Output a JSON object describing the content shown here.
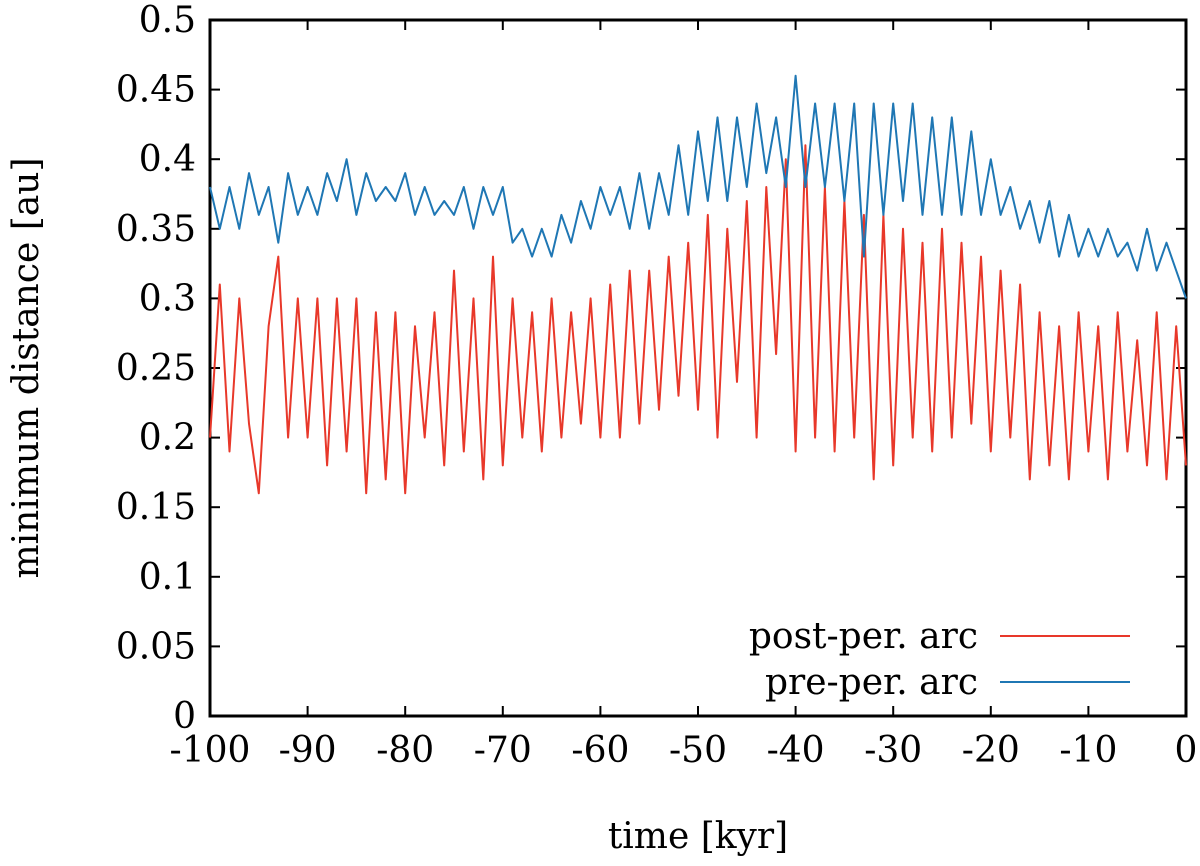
{
  "chart_data": {
    "type": "line",
    "title": "",
    "xlabel": "time [kyr]",
    "ylabel": "minimum distance [au]",
    "xlim": [
      -100,
      0
    ],
    "ylim": [
      0,
      0.5
    ],
    "xticks": [
      -100,
      -90,
      -80,
      -70,
      -60,
      -50,
      -40,
      -30,
      -20,
      -10,
      0
    ],
    "xtick_labels": [
      "-100",
      "-90",
      "-80",
      "-70",
      "-60",
      "-50",
      "-40",
      "-30",
      "-20",
      "-10",
      "0"
    ],
    "yticks": [
      0,
      0.05,
      0.1,
      0.15,
      0.2,
      0.25,
      0.3,
      0.35,
      0.4,
      0.45,
      0.5
    ],
    "ytick_labels": [
      "0",
      "0.05",
      "0.1",
      "0.15",
      "0.2",
      "0.25",
      "0.3",
      "0.35",
      "0.4",
      "0.45",
      "0.5"
    ],
    "grid": false,
    "legend_position": "bottom-right",
    "series": [
      {
        "name": "post-per. arc",
        "color": "#e8382a",
        "x": [
          -100,
          -99,
          -98,
          -97,
          -96,
          -95,
          -94,
          -93,
          -92,
          -91,
          -90,
          -89,
          -88,
          -87,
          -86,
          -85,
          -84,
          -83,
          -82,
          -81,
          -80,
          -79,
          -78,
          -77,
          -76,
          -75,
          -74,
          -73,
          -72,
          -71,
          -70,
          -69,
          -68,
          -67,
          -66,
          -65,
          -64,
          -63,
          -62,
          -61,
          -60,
          -59,
          -58,
          -57,
          -56,
          -55,
          -54,
          -53,
          -52,
          -51,
          -50,
          -49,
          -48,
          -47,
          -46,
          -45,
          -44,
          -43,
          -42,
          -41,
          -40,
          -39,
          -38,
          -37,
          -36,
          -35,
          -34,
          -33,
          -32,
          -31,
          -30,
          -29,
          -28,
          -27,
          -26,
          -25,
          -24,
          -23,
          -22,
          -21,
          -20,
          -19,
          -18,
          -17,
          -16,
          -15,
          -14,
          -13,
          -12,
          -11,
          -10,
          -9,
          -8,
          -7,
          -6,
          -5,
          -4,
          -3,
          -2,
          -1,
          0
        ],
        "values": [
          0.2,
          0.31,
          0.19,
          0.3,
          0.21,
          0.16,
          0.28,
          0.33,
          0.2,
          0.3,
          0.2,
          0.3,
          0.18,
          0.3,
          0.19,
          0.3,
          0.16,
          0.29,
          0.17,
          0.29,
          0.16,
          0.28,
          0.2,
          0.29,
          0.18,
          0.32,
          0.19,
          0.3,
          0.17,
          0.33,
          0.18,
          0.3,
          0.2,
          0.29,
          0.19,
          0.3,
          0.2,
          0.29,
          0.21,
          0.3,
          0.2,
          0.31,
          0.2,
          0.32,
          0.21,
          0.32,
          0.22,
          0.33,
          0.23,
          0.34,
          0.22,
          0.36,
          0.2,
          0.35,
          0.24,
          0.37,
          0.2,
          0.38,
          0.26,
          0.4,
          0.19,
          0.41,
          0.2,
          0.38,
          0.19,
          0.37,
          0.2,
          0.36,
          0.17,
          0.36,
          0.18,
          0.35,
          0.2,
          0.34,
          0.19,
          0.35,
          0.2,
          0.34,
          0.21,
          0.33,
          0.19,
          0.32,
          0.2,
          0.31,
          0.17,
          0.29,
          0.18,
          0.28,
          0.17,
          0.29,
          0.19,
          0.28,
          0.17,
          0.29,
          0.19,
          0.27,
          0.18,
          0.29,
          0.17,
          0.28,
          0.18
        ]
      },
      {
        "name": "pre-per. arc",
        "color": "#1f77b4",
        "x": [
          -100,
          -99,
          -98,
          -97,
          -96,
          -95,
          -94,
          -93,
          -92,
          -91,
          -90,
          -89,
          -88,
          -87,
          -86,
          -85,
          -84,
          -83,
          -82,
          -81,
          -80,
          -79,
          -78,
          -77,
          -76,
          -75,
          -74,
          -73,
          -72,
          -71,
          -70,
          -69,
          -68,
          -67,
          -66,
          -65,
          -64,
          -63,
          -62,
          -61,
          -60,
          -59,
          -58,
          -57,
          -56,
          -55,
          -54,
          -53,
          -52,
          -51,
          -50,
          -49,
          -48,
          -47,
          -46,
          -45,
          -44,
          -43,
          -42,
          -41,
          -40,
          -39,
          -38,
          -37,
          -36,
          -35,
          -34,
          -33,
          -32,
          -31,
          -30,
          -29,
          -28,
          -27,
          -26,
          -25,
          -24,
          -23,
          -22,
          -21,
          -20,
          -19,
          -18,
          -17,
          -16,
          -15,
          -14,
          -13,
          -12,
          -11,
          -10,
          -9,
          -8,
          -7,
          -6,
          -5,
          -4,
          -3,
          -2,
          -1,
          0
        ],
        "values": [
          0.38,
          0.35,
          0.38,
          0.35,
          0.39,
          0.36,
          0.38,
          0.34,
          0.39,
          0.36,
          0.38,
          0.36,
          0.39,
          0.37,
          0.4,
          0.36,
          0.39,
          0.37,
          0.38,
          0.37,
          0.39,
          0.36,
          0.38,
          0.36,
          0.37,
          0.36,
          0.38,
          0.35,
          0.38,
          0.36,
          0.38,
          0.34,
          0.35,
          0.33,
          0.35,
          0.33,
          0.36,
          0.34,
          0.37,
          0.35,
          0.38,
          0.36,
          0.38,
          0.35,
          0.39,
          0.35,
          0.39,
          0.36,
          0.41,
          0.36,
          0.42,
          0.37,
          0.43,
          0.37,
          0.43,
          0.38,
          0.44,
          0.39,
          0.43,
          0.38,
          0.46,
          0.38,
          0.44,
          0.38,
          0.44,
          0.37,
          0.44,
          0.33,
          0.44,
          0.36,
          0.44,
          0.37,
          0.44,
          0.36,
          0.43,
          0.36,
          0.43,
          0.36,
          0.42,
          0.36,
          0.4,
          0.36,
          0.38,
          0.35,
          0.37,
          0.34,
          0.37,
          0.33,
          0.36,
          0.33,
          0.35,
          0.33,
          0.35,
          0.33,
          0.34,
          0.32,
          0.35,
          0.32,
          0.34,
          0.32,
          0.3
        ]
      }
    ]
  }
}
